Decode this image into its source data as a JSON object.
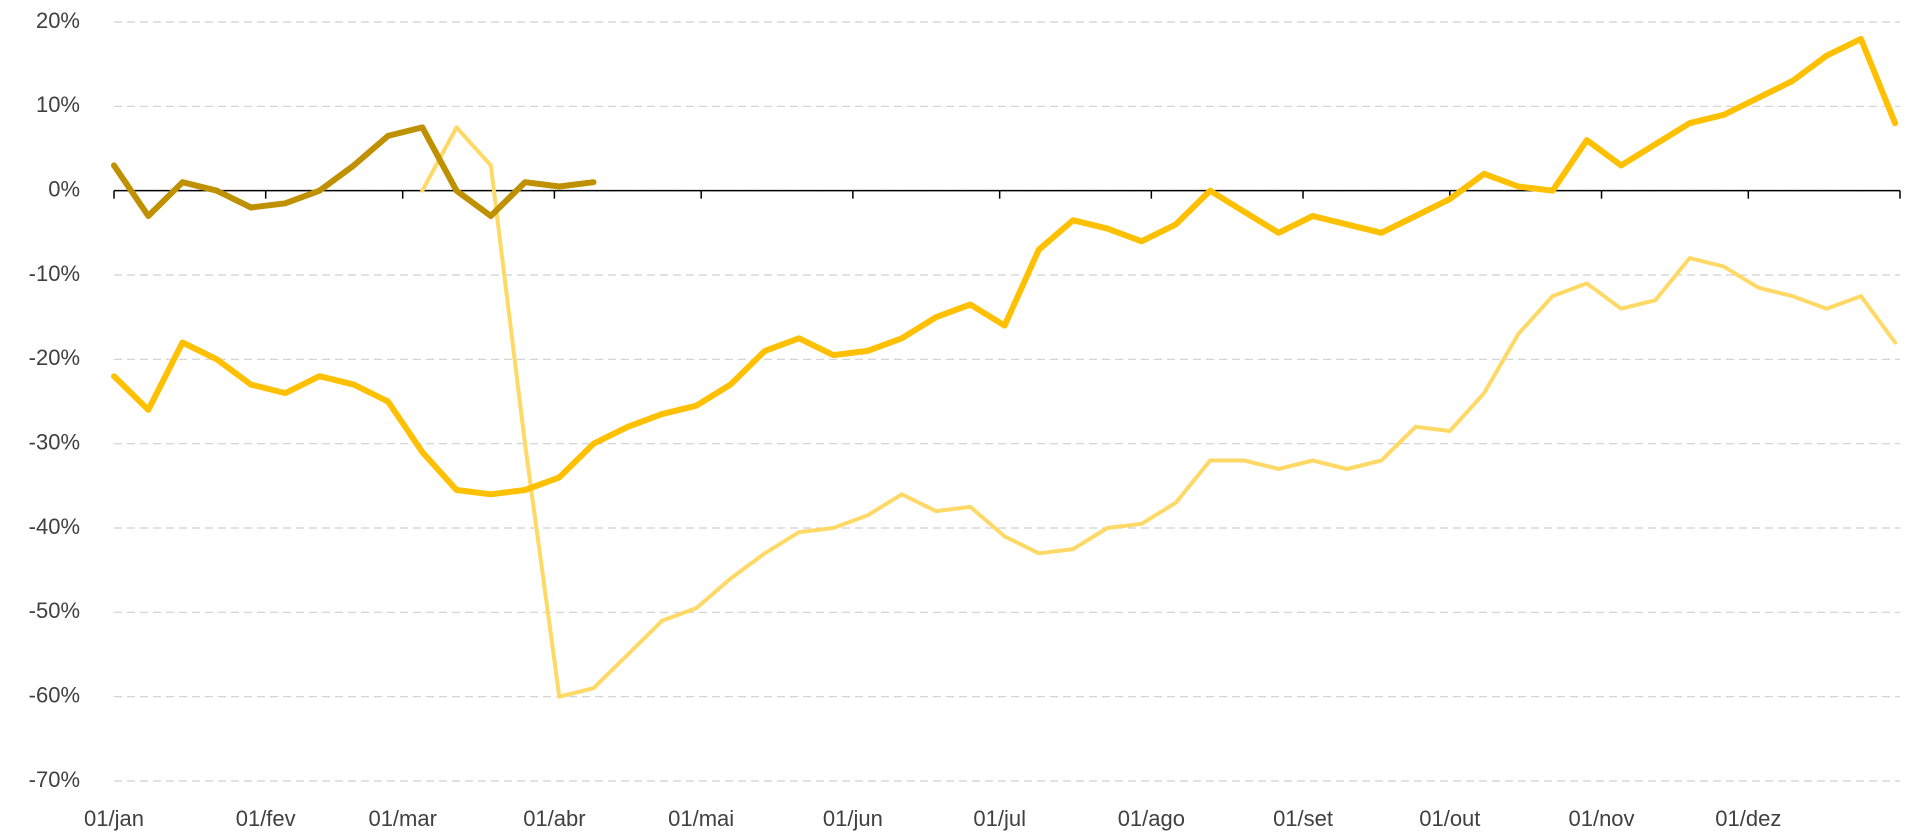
{
  "chart_data": {
    "type": "line",
    "x": [
      0,
      7,
      14,
      21,
      28,
      35,
      42,
      49,
      56,
      63,
      70,
      77,
      84,
      91,
      98,
      105,
      112,
      119,
      126,
      133,
      140,
      147,
      154,
      161,
      168,
      175,
      182,
      189,
      196,
      203,
      210,
      217,
      224,
      231,
      238,
      245,
      252,
      259,
      266,
      273,
      280,
      287,
      294,
      301,
      308,
      315,
      322,
      329,
      336,
      343,
      350,
      357,
      364
    ],
    "xlim": [
      0,
      365
    ],
    "xticks": [
      {
        "value": 0,
        "label": "01/jan"
      },
      {
        "value": 31,
        "label": "01/fev"
      },
      {
        "value": 59,
        "label": "01/mar"
      },
      {
        "value": 90,
        "label": "01/abr"
      },
      {
        "value": 120,
        "label": "01/mai"
      },
      {
        "value": 151,
        "label": "01/jun"
      },
      {
        "value": 181,
        "label": "01/jul"
      },
      {
        "value": 212,
        "label": "01/ago"
      },
      {
        "value": 243,
        "label": "01/set"
      },
      {
        "value": 273,
        "label": "01/out"
      },
      {
        "value": 304,
        "label": "01/nov"
      },
      {
        "value": 334,
        "label": "01/dez"
      }
    ],
    "ylim": [
      -70,
      20
    ],
    "yticks": [
      {
        "value": 20,
        "label": "20%"
      },
      {
        "value": 10,
        "label": "10%"
      },
      {
        "value": 0,
        "label": "0%"
      },
      {
        "value": -10,
        "label": "-10%"
      },
      {
        "value": -20,
        "label": "-20%"
      },
      {
        "value": -30,
        "label": "-30%"
      },
      {
        "value": -40,
        "label": "-40%"
      },
      {
        "value": -50,
        "label": "-50%"
      },
      {
        "value": -60,
        "label": "-60%"
      },
      {
        "value": -70,
        "label": "-70%"
      }
    ],
    "grid": true,
    "series": [
      {
        "color": "#FFD966",
        "values": [
          null,
          null,
          null,
          null,
          null,
          null,
          null,
          null,
          null,
          0,
          7.5,
          3,
          -30,
          -60,
          -59,
          -55,
          -51,
          -49.5,
          -46,
          -43,
          -40.5,
          -40,
          -38.5,
          -36,
          -38,
          -37.5,
          -41,
          -43,
          -42.5,
          -40,
          -39.5,
          -37,
          -32,
          -32,
          -33,
          -32,
          -33,
          -32,
          -28,
          -28.5,
          -24,
          -17,
          -12.5,
          -11,
          -14,
          -13,
          -8,
          -9,
          -11.5,
          -12.5,
          -14,
          -12.5,
          -18
        ]
      },
      {
        "color": "#FFC000",
        "values": [
          -22,
          -26,
          -18,
          -20,
          -23,
          -24,
          -22,
          -23,
          -25,
          -31,
          -35.5,
          -36,
          -35.5,
          -34,
          -30,
          -28,
          -26.5,
          -25.5,
          -23,
          -19,
          -17.5,
          -19.5,
          -19,
          -17.5,
          -15,
          -13.5,
          -16,
          -7,
          -3.5,
          -4.5,
          -6,
          -4,
          0,
          -2.5,
          -5,
          -3,
          -4,
          -5,
          -3,
          -1,
          2,
          0.5,
          0,
          6,
          3,
          5.5,
          8,
          9,
          11,
          13,
          16,
          18,
          8
        ]
      },
      {
        "color": "#BF9000",
        "values": [
          3,
          -3,
          1,
          0,
          -2,
          -1.5,
          0,
          3,
          6.5,
          7.5,
          0,
          -3,
          1,
          0.5,
          1,
          null,
          null,
          null,
          null,
          null,
          null,
          null,
          null,
          null,
          null,
          null,
          null,
          null,
          null,
          null,
          null,
          null,
          null,
          null,
          null,
          null,
          null,
          null,
          null,
          null,
          null,
          null,
          null,
          null,
          null,
          null,
          null,
          null,
          null,
          null,
          null,
          null,
          null
        ]
      }
    ]
  }
}
